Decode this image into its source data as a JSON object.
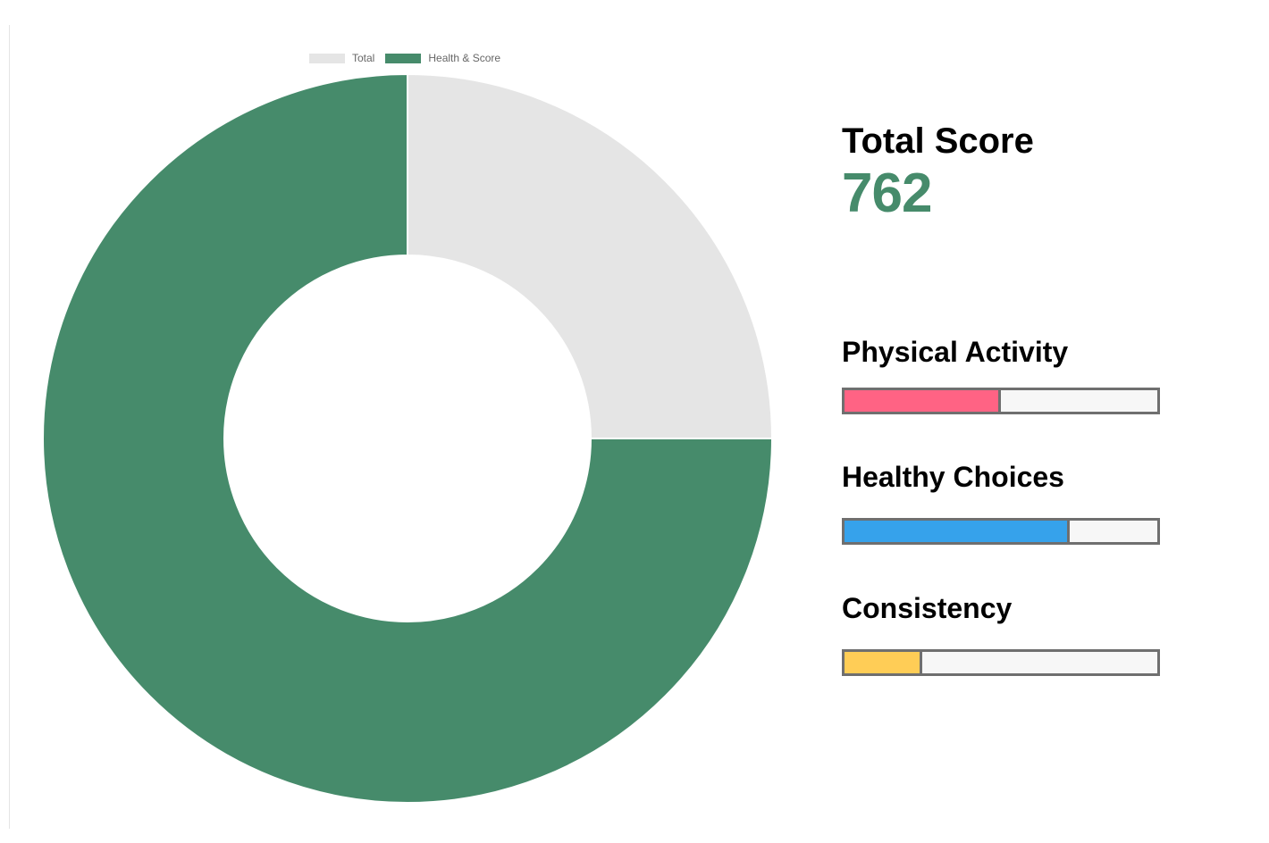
{
  "chart_data": {
    "type": "pie",
    "variant": "doughnut",
    "labels": [
      "Total",
      "Health & Score"
    ],
    "values": [
      25,
      75
    ],
    "colors": [
      "#e5e5e5",
      "#468b6b"
    ],
    "legend_position": "top"
  },
  "summary": {
    "title": "Total Score",
    "value": "762"
  },
  "metrics": [
    {
      "label": "Physical Activity",
      "progress": 0.49,
      "color": "#ff6384"
    },
    {
      "label": "Healthy Choices",
      "progress": 0.71,
      "color": "#36a2eb"
    },
    {
      "label": "Consistency",
      "progress": 0.24,
      "color": "#ffcd56"
    }
  ]
}
